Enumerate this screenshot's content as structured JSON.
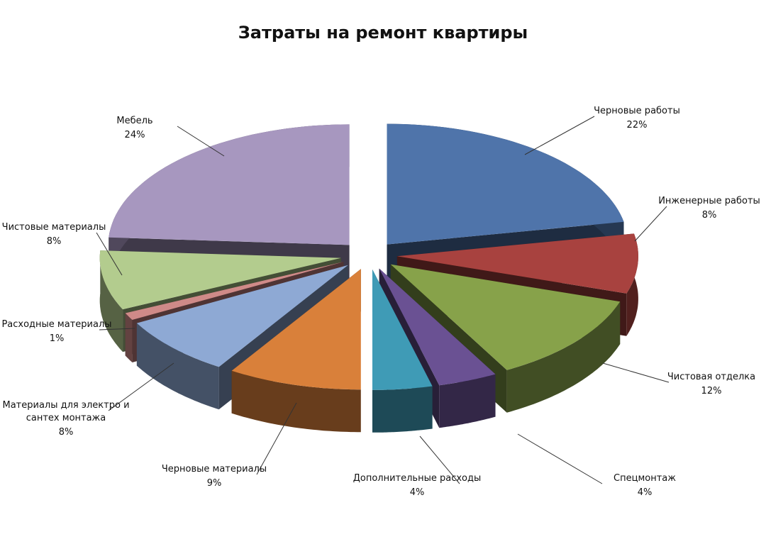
{
  "chart_data": {
    "type": "pie",
    "style": "3d-exploded",
    "title": "Затраты на ремонт квартиры",
    "categories": [
      "Черновые работы",
      "Инженерные работы",
      "Чистовая отделка",
      "Спецмонтаж",
      "Дополнительные расходы",
      "Черновые материалы",
      "Материалы для электро и сантех монтажа",
      "Расходные материалы",
      "Чистовые материалы",
      "Мебель"
    ],
    "label_lines": [
      [
        "Черновые работы"
      ],
      [
        "Инженерные работы"
      ],
      [
        "Чистовая отделка"
      ],
      [
        "Спецмонтаж"
      ],
      [
        "Дополнительные расходы"
      ],
      [
        "Черновые материалы"
      ],
      [
        "Материалы для электро и",
        "сантех монтажа"
      ],
      [
        "Расходные материалы"
      ],
      [
        "Чистовые материалы"
      ],
      [
        "Мебель"
      ]
    ],
    "values": [
      22,
      8,
      12,
      4,
      4,
      9,
      8,
      1,
      8,
      24
    ],
    "percent_labels": [
      "22%",
      "8%",
      "12%",
      "4%",
      "4%",
      "9%",
      "8%",
      "1%",
      "8%",
      "24%"
    ],
    "colors": [
      "#4f74aa",
      "#a8423f",
      "#87a24a",
      "#6a5193",
      "#3f9bb6",
      "#d9803a",
      "#8ea9d4",
      "#cf8a88",
      "#b3cc8e",
      "#a797bf"
    ]
  }
}
